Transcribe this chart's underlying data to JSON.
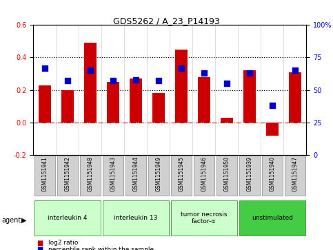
{
  "title": "GDS5262 / A_23_P14193",
  "samples": [
    "GSM1151941",
    "GSM1151942",
    "GSM1151948",
    "GSM1151943",
    "GSM1151944",
    "GSM1151949",
    "GSM1151945",
    "GSM1151946",
    "GSM1151950",
    "GSM1151939",
    "GSM1151940",
    "GSM1151947"
  ],
  "log2_ratio": [
    0.23,
    0.2,
    0.49,
    0.25,
    0.27,
    0.18,
    0.45,
    0.28,
    0.03,
    0.32,
    -0.08,
    0.31
  ],
  "percentile_rank": [
    67,
    57,
    65,
    57,
    58,
    57,
    67,
    63,
    55,
    63,
    38,
    65
  ],
  "ylim_left": [
    -0.2,
    0.6
  ],
  "ylim_right": [
    0,
    100
  ],
  "yticks_left": [
    -0.2,
    0.0,
    0.2,
    0.4,
    0.6
  ],
  "yticks_right": [
    0,
    25,
    50,
    75,
    100
  ],
  "ytick_right_labels": [
    "0",
    "25",
    "50",
    "75",
    "100%"
  ],
  "bar_color": "#cc0000",
  "sq_color": "#0000cc",
  "zero_line_color": "#cc0000",
  "dotted_line_color": "#000000",
  "groups": [
    {
      "label": "interleukin 4",
      "start": 0,
      "end": 3,
      "color": "#ccffcc"
    },
    {
      "label": "interleukin 13",
      "start": 3,
      "end": 6,
      "color": "#ccffcc"
    },
    {
      "label": "tumor necrosis\nfactor-α",
      "start": 6,
      "end": 9,
      "color": "#ccffcc"
    },
    {
      "label": "unstimulated",
      "start": 9,
      "end": 12,
      "color": "#44cc44"
    }
  ],
  "agent_label": "agent",
  "legend_items": [
    {
      "color": "#cc0000",
      "label": "log2 ratio"
    },
    {
      "color": "#0000cc",
      "label": "percentile rank within the sample"
    }
  ],
  "bg_color": "#ffffff",
  "sample_box_color": "#d0d0d0",
  "sample_box_edge_color": "#888888",
  "group_edge_color": "#44aa44"
}
